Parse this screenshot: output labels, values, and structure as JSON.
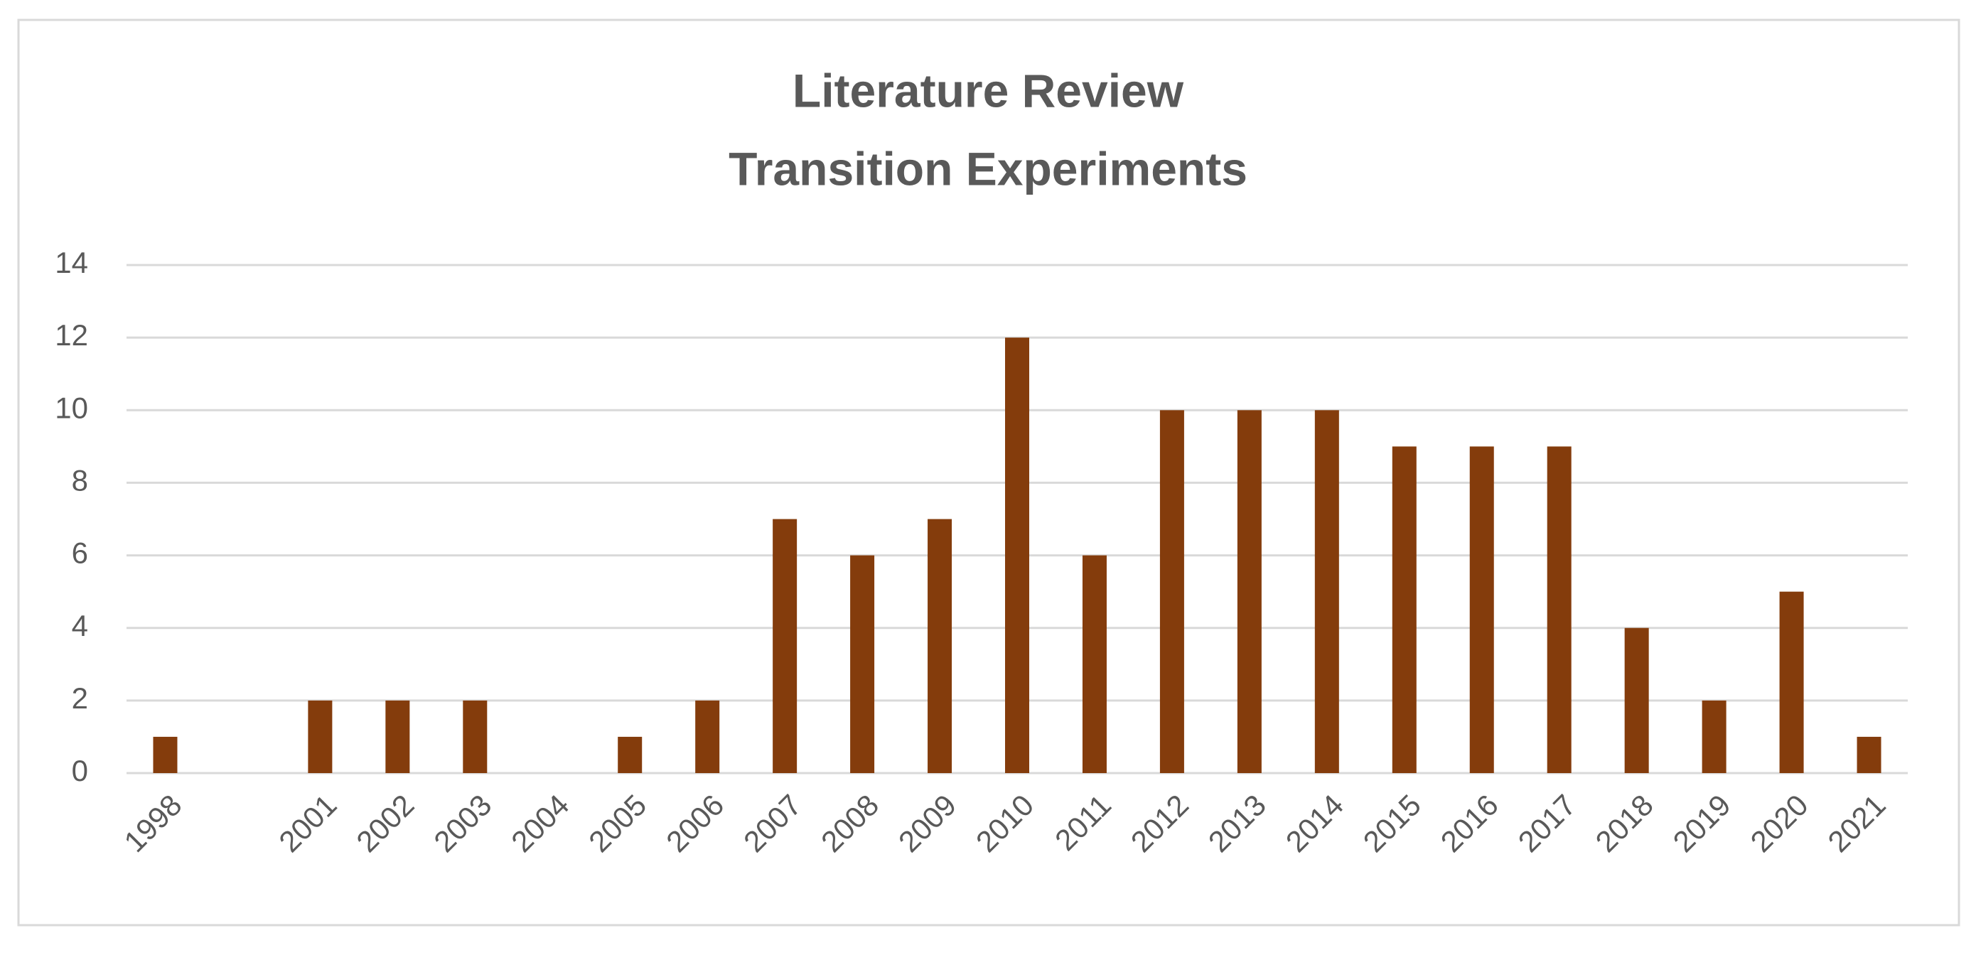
{
  "chart_data": {
    "type": "bar",
    "title": [
      "Literature Review",
      "Transition Experiments"
    ],
    "categories": [
      "1998",
      null,
      "2001",
      "2002",
      "2003",
      "2004",
      "2005",
      "2006",
      "2007",
      "2008",
      "2009",
      "2010",
      "2011",
      "2012",
      "2013",
      "2014",
      "2015",
      "2016",
      "2017",
      "2018",
      "2019",
      "2020",
      "2021"
    ],
    "values": [
      1,
      null,
      2,
      2,
      2,
      0,
      1,
      2,
      7,
      6,
      7,
      12,
      6,
      10,
      10,
      10,
      9,
      9,
      9,
      4,
      2,
      5,
      1
    ],
    "color": "#843c0c",
    "ylim": [
      0,
      14
    ],
    "yticks": [
      0,
      2,
      4,
      6,
      8,
      10,
      12,
      14
    ],
    "grid": true
  }
}
